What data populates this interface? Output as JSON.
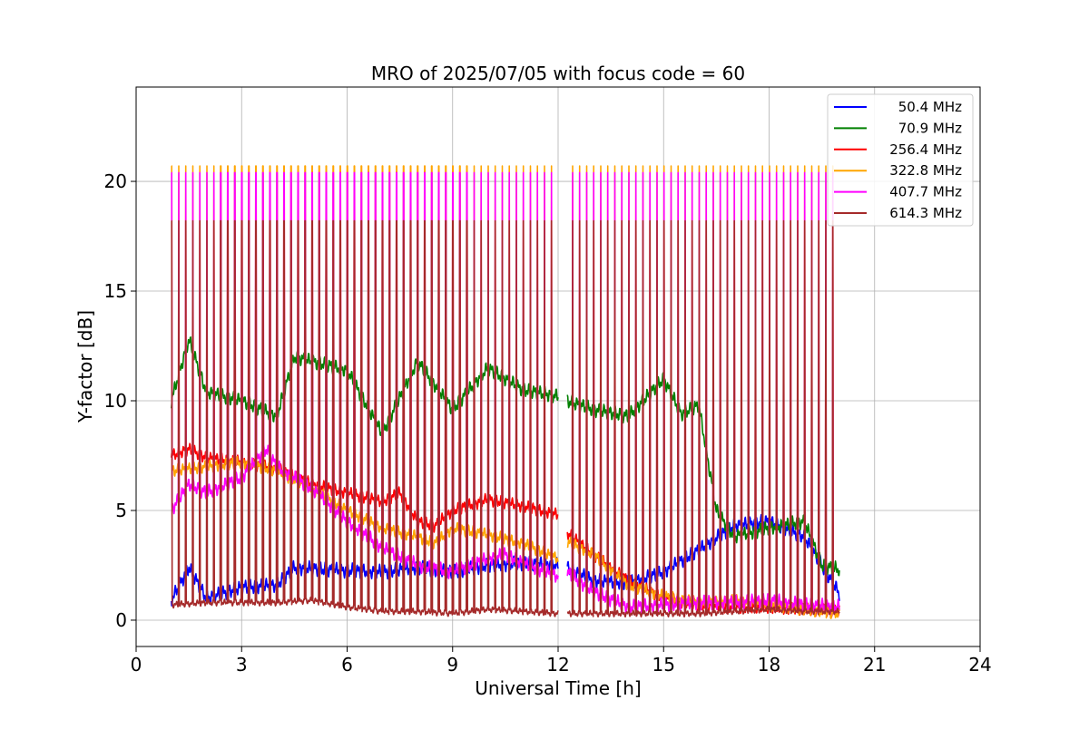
{
  "chart_data": {
    "type": "line",
    "title": "MRO of 2025/07/05 with focus code = 60",
    "xlabel": "Universal Time [h]",
    "ylabel": "Y-factor [dB]",
    "xlim": [
      0,
      24
    ],
    "ylim": [
      -1.2,
      24.3
    ],
    "xticks": [
      0,
      3,
      6,
      9,
      12,
      15,
      18,
      21,
      24
    ],
    "yticks": [
      0,
      5,
      10,
      15,
      20
    ],
    "grid": true,
    "legend_position": "top-right",
    "sweep": {
      "cycle_h": 0.2,
      "start_h": 1.0,
      "end_h": 20.0,
      "gap": [
        12.0,
        12.25
      ],
      "peak_values": {
        "614.3 MHz": 18.2,
        "407.7 MHz": 20.4,
        "322.8 MHz": 20.7
      }
    },
    "series": [
      {
        "name": "50.4 MHz",
        "color": "#0000ff",
        "x": [
          1,
          1.5,
          2,
          3,
          4,
          4.5,
          5.5,
          7,
          8,
          9,
          10,
          11,
          12,
          12.25,
          13,
          14,
          15,
          16,
          17,
          18,
          19,
          19.5,
          20
        ],
        "y": [
          0.9,
          2.4,
          1.0,
          1.5,
          1.6,
          2.4,
          2.3,
          2.2,
          2.4,
          2.2,
          2.5,
          2.6,
          2.5,
          2.4,
          1.8,
          1.7,
          2.2,
          3.2,
          4.3,
          4.5,
          3.8,
          2.5,
          1.2
        ]
      },
      {
        "name": "70.9 MHz",
        "color": "#008000",
        "x": [
          1,
          1.5,
          2,
          3,
          4,
          4.5,
          5,
          6,
          7,
          8,
          9,
          10,
          11,
          12,
          12.25,
          13,
          14,
          15,
          15.5,
          16,
          16.5,
          17,
          18,
          19,
          19.5,
          20
        ],
        "y": [
          10.0,
          12.8,
          10.4,
          10.0,
          9.3,
          12.0,
          11.8,
          11.4,
          8.5,
          11.8,
          9.6,
          11.5,
          10.5,
          10.2,
          10.0,
          9.6,
          9.3,
          11.0,
          9.4,
          9.8,
          5.0,
          3.8,
          4.2,
          4.5,
          2.5,
          2.3
        ]
      },
      {
        "name": "256.4 MHz",
        "color": "#ff0000",
        "x": [
          1,
          1.5,
          2,
          3,
          4,
          5,
          6,
          7,
          7.5,
          8,
          8.5,
          9,
          10,
          11,
          12,
          12.25,
          13,
          14,
          15,
          16,
          17,
          18,
          19,
          20
        ],
        "y": [
          7.5,
          7.8,
          7.4,
          7.2,
          6.9,
          6.2,
          5.8,
          5.4,
          5.8,
          4.5,
          4.3,
          5.0,
          5.5,
          5.2,
          4.8,
          4.0,
          3.0,
          1.8,
          1.0,
          0.7,
          0.6,
          0.6,
          0.5,
          0.4
        ]
      },
      {
        "name": "322.8 MHz",
        "color": "#ffa500",
        "x": [
          1,
          2,
          3,
          4,
          5,
          6,
          7,
          8,
          8.5,
          9,
          10,
          11,
          12,
          12.25,
          13,
          14,
          15,
          16,
          17,
          18,
          19,
          20
        ],
        "y": [
          6.8,
          7.0,
          7.2,
          6.8,
          6.0,
          5.0,
          4.2,
          3.8,
          3.5,
          4.2,
          3.9,
          3.5,
          2.8,
          3.6,
          3.0,
          1.6,
          1.1,
          0.8,
          0.9,
          0.7,
          0.5,
          0.3
        ]
      },
      {
        "name": "407.7 MHz",
        "color": "#ff00ff",
        "x": [
          1,
          1.5,
          2,
          3,
          3.7,
          4,
          5,
          6,
          7,
          8,
          9,
          10,
          10.5,
          11,
          12,
          12.25,
          13,
          14,
          15,
          16,
          17,
          18,
          19,
          20
        ],
        "y": [
          5.0,
          6.2,
          5.8,
          6.5,
          7.8,
          7.0,
          6.0,
          4.5,
          3.3,
          2.5,
          2.2,
          2.8,
          3.0,
          2.6,
          2.0,
          2.2,
          1.3,
          0.6,
          0.7,
          0.8,
          0.8,
          0.9,
          0.7,
          0.6
        ]
      },
      {
        "name": "614.3 MHz",
        "color": "#a52a2a",
        "x": [
          1,
          2,
          3,
          4,
          5,
          6,
          7,
          8,
          9,
          10,
          11,
          12,
          12.25,
          13,
          14,
          15,
          16,
          17,
          18,
          19,
          20
        ],
        "y": [
          0.7,
          0.8,
          0.8,
          0.8,
          0.9,
          0.6,
          0.4,
          0.4,
          0.3,
          0.5,
          0.4,
          0.3,
          0.3,
          0.3,
          0.3,
          0.3,
          0.3,
          0.4,
          0.5,
          0.4,
          0.4
        ]
      }
    ]
  }
}
